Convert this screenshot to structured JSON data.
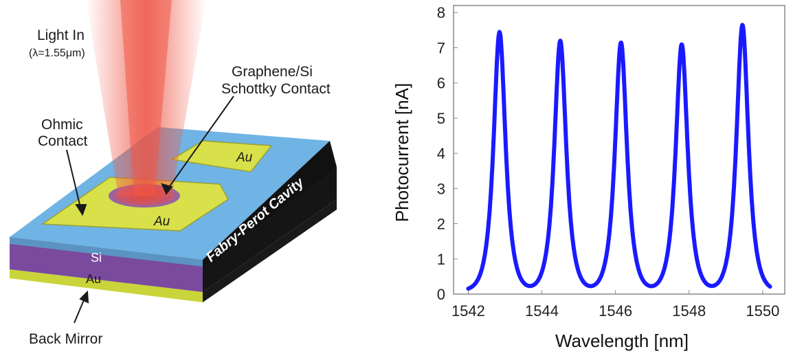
{
  "schematic": {
    "light_in": "Light In",
    "wavelength_note": "(λ=1.55μm)",
    "schottky_line1": "Graphene/Si",
    "schottky_line2": "Schottky Contact",
    "ohmic_line1": "Ohmic",
    "ohmic_line2": "Contact",
    "au_top": "Au",
    "au_pad": "Au",
    "cavity": "Fabry-Perot Cavity",
    "si_layer": "Si",
    "au_layer": "Au",
    "back_mirror": "Back Mirror"
  },
  "colors": {
    "trace": "#1a1aff",
    "beam": "#f05a4a",
    "gold_pad": "#d8e04a",
    "cavity_top": "#6fb4e4",
    "si": "#7a4a9e",
    "au_layer": "#c9d43a"
  },
  "chart_data": {
    "type": "line",
    "title": "",
    "xlabel": "Wavelength [nm]",
    "ylabel": "Photocurrent [nA]",
    "xlim": [
      1541.6,
      1550.6
    ],
    "ylim": [
      0,
      8.2
    ],
    "xticks": [
      1542,
      1544,
      1546,
      1548,
      1550
    ],
    "yticks": [
      0,
      1,
      2,
      3,
      4,
      5,
      6,
      7,
      8
    ],
    "grid": false,
    "legend": "none",
    "series": [
      {
        "peaks": [
          {
            "center": 1542.85,
            "height": 7.45,
            "fwhm": 0.42
          },
          {
            "center": 1544.5,
            "height": 7.2,
            "fwhm": 0.42
          },
          {
            "center": 1546.15,
            "height": 7.15,
            "fwhm": 0.42
          },
          {
            "center": 1547.8,
            "height": 7.1,
            "fwhm": 0.42
          },
          {
            "center": 1549.45,
            "height": 7.65,
            "fwhm": 0.42
          }
        ],
        "x_range": [
          1542.0,
          1550.2
        ],
        "baseline": 0.1
      }
    ]
  }
}
